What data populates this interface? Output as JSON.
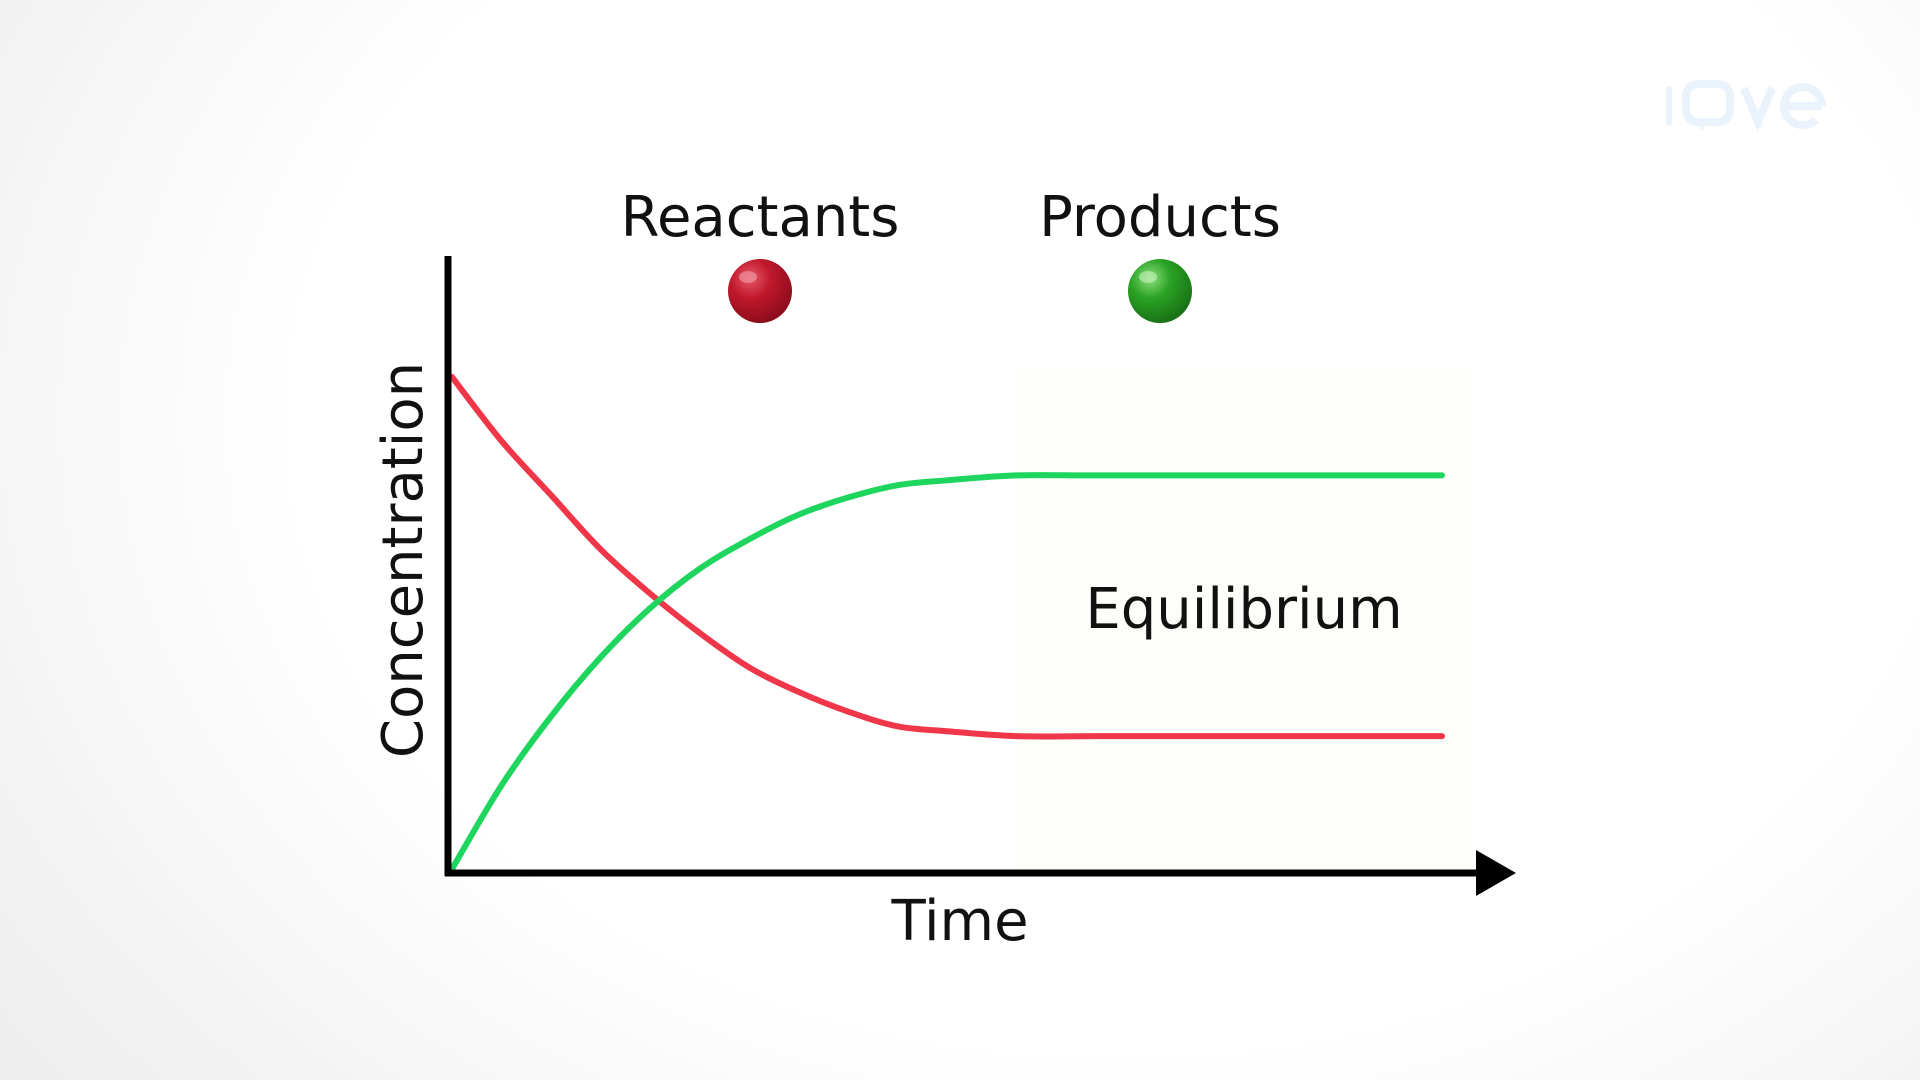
{
  "chart_data": {
    "type": "line",
    "title": "",
    "xlabel": "Time",
    "ylabel": "Concentration",
    "x_range": [
      0,
      1
    ],
    "y_range": [
      0,
      1
    ],
    "grid": false,
    "legend": {
      "placement": "top",
      "entries": [
        {
          "label": "Reactants",
          "color": "#c0182c"
        },
        {
          "label": "Products",
          "color": "#2aa324"
        }
      ]
    },
    "annotations": [
      {
        "text": "Equilibrium",
        "x": 0.8,
        "y": 0.53
      }
    ],
    "equilibrium_region_start": 0.57,
    "series": [
      {
        "name": "Reactants",
        "color": "#f0374a",
        "x": [
          0.0,
          0.05,
          0.1,
          0.15,
          0.2,
          0.25,
          0.3,
          0.35,
          0.4,
          0.45,
          0.5,
          0.57,
          0.65,
          0.75,
          0.85,
          1.0
        ],
        "y": [
          1.0,
          0.87,
          0.76,
          0.65,
          0.56,
          0.48,
          0.41,
          0.36,
          0.32,
          0.29,
          0.28,
          0.27,
          0.27,
          0.27,
          0.27,
          0.27
        ]
      },
      {
        "name": "Products",
        "color": "#1ed65e",
        "x": [
          0.0,
          0.05,
          0.1,
          0.15,
          0.2,
          0.25,
          0.3,
          0.35,
          0.4,
          0.45,
          0.5,
          0.57,
          0.65,
          0.75,
          0.85,
          1.0
        ],
        "y": [
          0.0,
          0.17,
          0.31,
          0.43,
          0.53,
          0.61,
          0.67,
          0.72,
          0.755,
          0.78,
          0.79,
          0.8,
          0.8,
          0.8,
          0.8,
          0.8
        ]
      }
    ]
  },
  "logo": {
    "text": "jove",
    "color": "#eaf3fb"
  }
}
